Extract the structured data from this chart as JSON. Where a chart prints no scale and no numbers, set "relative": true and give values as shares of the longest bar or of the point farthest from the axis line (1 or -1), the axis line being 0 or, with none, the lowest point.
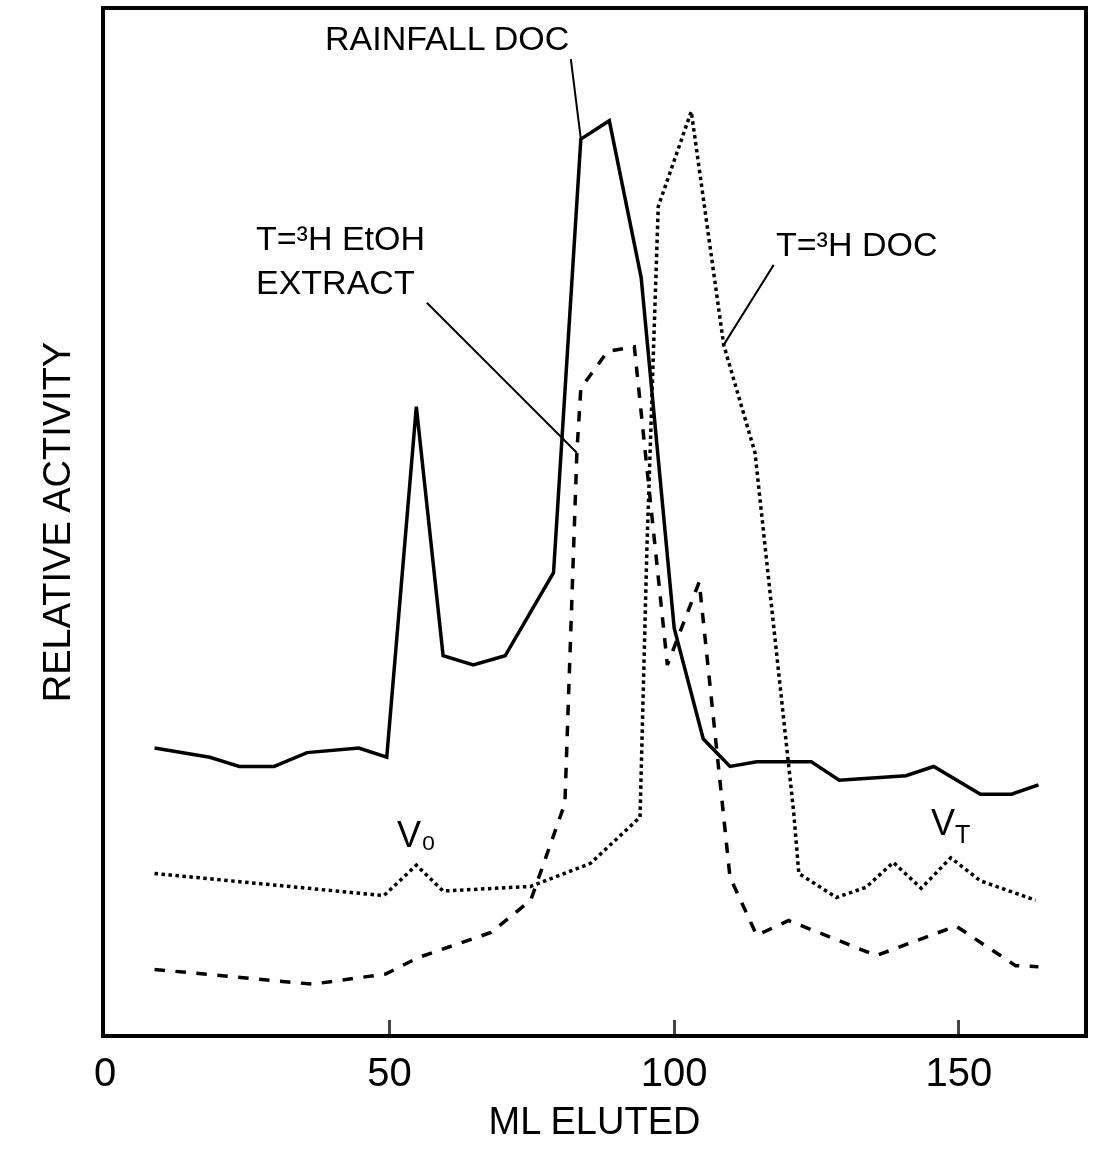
{
  "chart_data": {
    "type": "line",
    "relative": true,
    "xlabel": "ML ELUTED",
    "ylabel": "RELATIVE ACTIVITY",
    "xlim": [
      0,
      172
    ],
    "xticks": [
      0,
      50,
      100,
      150
    ],
    "legend": false,
    "marker": "none",
    "series": [
      {
        "name": "RAINFALL DOC",
        "color": "#000000",
        "line_style": "solid",
        "x": [
          8.7,
          18.4,
          23.6,
          29.7,
          35.5,
          44.6,
          49.5,
          54.7,
          59.4,
          64.7,
          70.3,
          78.8,
          83.6,
          88.6,
          94.2,
          100,
          105.1,
          109.8,
          114.5,
          124.1,
          129,
          140.7,
          145.6,
          153.8,
          159.3,
          164
        ],
        "values": [
          0.31,
          0.3,
          0.29,
          0.29,
          0.305,
          0.31,
          0.3,
          0.68,
          0.41,
          0.4,
          0.41,
          0.5,
          0.97,
          0.99,
          0.82,
          0.44,
          0.32,
          0.29,
          0.295,
          0.295,
          0.275,
          0.28,
          0.29,
          0.26,
          0.26,
          0.27
        ]
      },
      {
        "name": "T=³H EtOH EXTRACT",
        "color": "#000000",
        "line_style": "dashed",
        "x": [
          8.7,
          36.4,
          49.3,
          55.1,
          67.8,
          74.8,
          80.8,
          82.9,
          83.6,
          88.3,
          93,
          98.8,
          104.4,
          109.8,
          114.5,
          120.1,
          135.5,
          149.5,
          160,
          164
        ],
        "values": [
          0.07,
          0.054,
          0.065,
          0.083,
          0.11,
          0.145,
          0.25,
          0.63,
          0.7,
          0.74,
          0.745,
          0.4,
          0.49,
          0.17,
          0.107,
          0.123,
          0.085,
          0.117,
          0.074,
          0.073
        ]
      },
      {
        "name": "T=³H DOC",
        "color": "#000000",
        "line_style": "dotted",
        "x": [
          8.7,
          49,
          54.7,
          59.4,
          74.8,
          85.3,
          94,
          95.2,
          97.2,
          103,
          108.7,
          114.2,
          121,
          121.9,
          128.5,
          133.7,
          138.5,
          143.4,
          148.6,
          153.8,
          163.5
        ],
        "values": [
          0.174,
          0.15,
          0.183,
          0.155,
          0.16,
          0.185,
          0.235,
          0.525,
          0.897,
          1.0,
          0.747,
          0.63,
          0.24,
          0.174,
          0.148,
          0.159,
          0.186,
          0.158,
          0.191,
          0.166,
          0.145
        ]
      }
    ],
    "annotations": [
      {
        "text": "V₀",
        "x": 54.7,
        "y": 0.183
      },
      {
        "text": "V$_{T}$",
        "x": 148.6,
        "y": 0.191
      }
    ]
  }
}
